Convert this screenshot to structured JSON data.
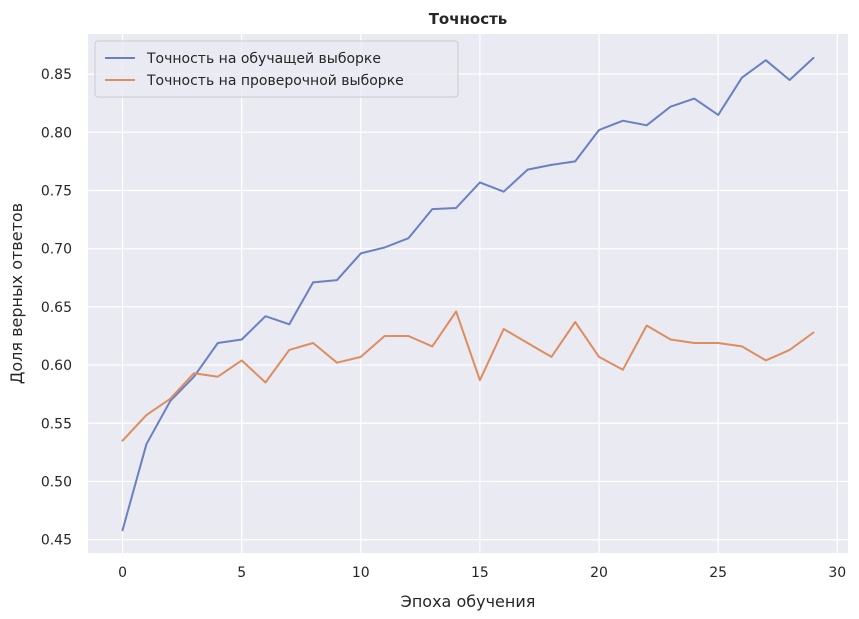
{
  "chart_data": {
    "type": "line",
    "title": "Точность",
    "xlabel": "Эпоха обучения",
    "ylabel": "Доля верных ответов",
    "xlim": [
      -1.45,
      30.45
    ],
    "ylim": [
      0.4385,
      0.8845
    ],
    "xticks": [
      0,
      5,
      10,
      15,
      20,
      25,
      30
    ],
    "yticks": [
      0.45,
      0.5,
      0.55,
      0.6,
      0.65,
      0.7,
      0.75,
      0.8,
      0.85
    ],
    "ytick_labels": [
      "0.45",
      "0.50",
      "0.55",
      "0.60",
      "0.65",
      "0.70",
      "0.75",
      "0.80",
      "0.85"
    ],
    "grid": true,
    "legend_position": "top-left",
    "x": [
      0,
      1,
      2,
      3,
      4,
      5,
      6,
      7,
      8,
      9,
      10,
      11,
      12,
      13,
      14,
      15,
      16,
      17,
      18,
      19,
      20,
      21,
      22,
      23,
      24,
      25,
      26,
      27,
      28,
      29
    ],
    "series": [
      {
        "name": "Точность на обучащей выборке",
        "color": "#6a80c1",
        "values": [
          0.458,
          0.532,
          0.569,
          0.59,
          0.619,
          0.622,
          0.642,
          0.635,
          0.671,
          0.673,
          0.696,
          0.701,
          0.709,
          0.734,
          0.735,
          0.757,
          0.749,
          0.768,
          0.772,
          0.775,
          0.802,
          0.81,
          0.806,
          0.822,
          0.829,
          0.815,
          0.847,
          0.862,
          0.845,
          0.864
        ]
      },
      {
        "name": "Точность на проверочной выборке",
        "color": "#dd8d5f",
        "values": [
          0.535,
          0.557,
          0.571,
          0.593,
          0.59,
          0.604,
          0.585,
          0.613,
          0.619,
          0.602,
          0.607,
          0.625,
          0.625,
          0.616,
          0.646,
          0.587,
          0.631,
          0.619,
          0.607,
          0.637,
          0.607,
          0.596,
          0.634,
          0.622,
          0.619,
          0.619,
          0.616,
          0.604,
          0.613,
          0.628
        ]
      }
    ]
  }
}
